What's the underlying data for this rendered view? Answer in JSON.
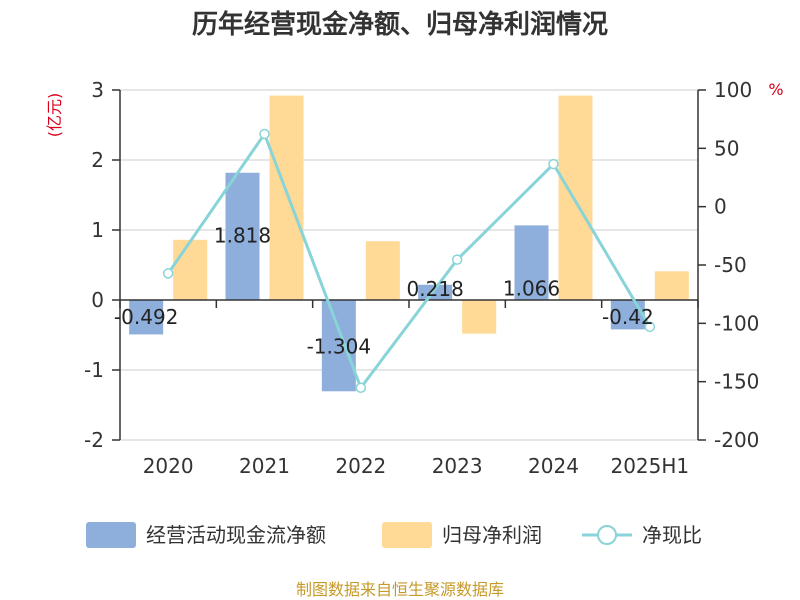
{
  "chart_data": {
    "type": "bar",
    "title": "历年经营现金净额、归母净利润情况",
    "categories": [
      "2020",
      "2021",
      "2022",
      "2023",
      "2024",
      "2025H1"
    ],
    "left_axis": {
      "unit_label": "(亿元)",
      "range": [
        -2,
        3
      ],
      "ticks": [
        "3",
        "2",
        "1",
        "0",
        "-1",
        "-2"
      ]
    },
    "right_axis": {
      "unit_label": "%",
      "range": [
        -200,
        100
      ],
      "ticks": [
        "100",
        "50",
        "0",
        "-50",
        "-100",
        "-150",
        "-200"
      ]
    },
    "grid": true,
    "legend_position": "bottom",
    "series": [
      {
        "name": "经营活动现金流净额",
        "type": "bar",
        "axis": "left",
        "color": "#8eaedb",
        "values": [
          -0.492,
          1.818,
          -1.304,
          0.218,
          1.066,
          -0.42
        ],
        "labels": [
          "-0.492",
          "1.818",
          "-1.304",
          "0.218",
          "1.066",
          "-0.42"
        ]
      },
      {
        "name": "归母净利润",
        "type": "bar",
        "axis": "left",
        "color": "#ffd996",
        "values": [
          0.86,
          2.92,
          0.84,
          -0.48,
          2.92,
          0.41
        ]
      },
      {
        "name": "净现比",
        "type": "line",
        "axis": "right",
        "color": "#88d4d8",
        "values": [
          -57.2,
          62.3,
          -155.2,
          -45.4,
          36.5,
          -103
        ]
      }
    ]
  },
  "source_text": "制图数据来自恒生聚源数据库"
}
